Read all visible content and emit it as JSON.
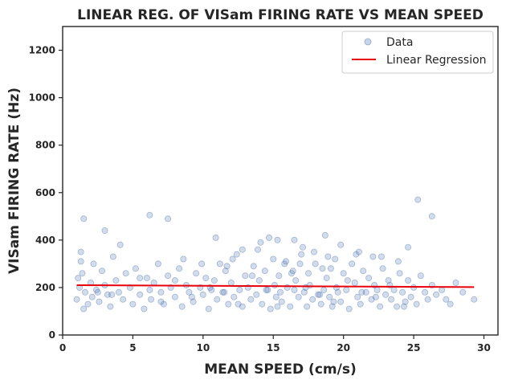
{
  "chart_data": {
    "type": "scatter",
    "title": "LINEAR REG. OF VISam FIRING RATE VS MEAN SPEED",
    "xlabel": "MEAN SPEED (cm/s)",
    "ylabel": "VISam FIRING RATE (Hz)",
    "xlim": [
      0,
      31
    ],
    "ylim": [
      0,
      1300
    ],
    "xticks": [
      0,
      5,
      10,
      15,
      20,
      25,
      30
    ],
    "xtick_labels": [
      "0",
      "5",
      "10",
      "15",
      "20",
      "25",
      "30"
    ],
    "yticks": [
      0,
      200,
      400,
      600,
      800,
      1000,
      1200
    ],
    "ytick_labels": [
      "0",
      "200",
      "400",
      "600",
      "800",
      "1000",
      "1200"
    ],
    "grid": false,
    "legend_position": "top-right",
    "colors": {
      "data": "#4c72b0",
      "regression": "#e8000b",
      "axes": "#262626"
    },
    "series": [
      {
        "name": "Data",
        "kind": "scatter",
        "x": [
          1.0,
          1.1,
          1.2,
          1.3,
          1.4,
          1.5,
          1.6,
          1.8,
          2.0,
          2.1,
          2.2,
          2.4,
          2.6,
          2.8,
          3.0,
          3.2,
          3.4,
          3.6,
          3.8,
          4.0,
          4.3,
          4.5,
          4.8,
          5.0,
          5.2,
          5.5,
          5.8,
          6.0,
          6.2,
          6.3,
          6.5,
          6.8,
          7.0,
          7.2,
          7.5,
          7.7,
          8.0,
          8.3,
          8.5,
          8.8,
          9.0,
          9.3,
          9.5,
          9.8,
          10.0,
          10.2,
          10.4,
          10.6,
          10.8,
          11.0,
          11.2,
          11.4,
          11.6,
          11.8,
          12.0,
          12.2,
          12.4,
          12.6,
          12.8,
          13.0,
          13.2,
          13.4,
          13.6,
          13.8,
          14.0,
          14.2,
          14.4,
          14.6,
          14.8,
          15.0,
          15.1,
          15.2,
          15.4,
          15.5,
          15.6,
          15.8,
          16.0,
          16.2,
          16.4,
          16.5,
          16.6,
          16.8,
          17.0,
          17.2,
          17.4,
          17.5,
          17.6,
          17.8,
          18.0,
          18.2,
          18.4,
          18.5,
          18.6,
          18.8,
          19.0,
          19.2,
          19.4,
          19.5,
          19.6,
          19.8,
          20.0,
          20.2,
          20.4,
          20.6,
          20.8,
          21.0,
          21.2,
          21.4,
          21.6,
          21.8,
          22.0,
          22.2,
          22.4,
          22.6,
          22.8,
          23.0,
          23.2,
          23.4,
          23.6,
          23.8,
          24.0,
          24.2,
          24.4,
          24.6,
          24.8,
          25.0,
          25.2,
          25.5,
          25.8,
          26.0,
          26.3,
          26.6,
          27.0,
          27.3,
          27.6,
          28.0,
          28.5,
          29.3,
          1.3,
          2.5,
          3.5,
          5.5,
          7.0,
          8.0,
          9.2,
          10.5,
          11.5,
          12.5,
          13.5,
          14.5,
          15.3,
          16.3,
          17.3,
          18.3,
          19.3,
          20.3,
          21.3,
          22.3,
          23.3,
          24.3,
          25.3,
          26.3,
          1.5,
          3.0,
          6.2,
          7.5,
          16.5,
          18.7,
          15.3,
          14.7,
          19.8,
          24.6,
          12.8,
          17.9,
          22.7,
          8.6,
          4.1,
          10.9,
          13.9,
          16.9,
          20.9,
          23.9,
          11.7,
          14.1,
          17.1,
          18.9,
          21.1,
          9.9,
          12.1,
          15.9,
          19.1,
          22.1
        ],
        "y": [
          150,
          240,
          200,
          350,
          260,
          110,
          180,
          130,
          220,
          160,
          300,
          190,
          140,
          270,
          210,
          170,
          120,
          330,
          230,
          180,
          150,
          260,
          200,
          130,
          280,
          170,
          110,
          240,
          190,
          150,
          220,
          300,
          180,
          130,
          250,
          200,
          160,
          280,
          120,
          210,
          180,
          140,
          260,
          200,
          170,
          240,
          110,
          190,
          230,
          150,
          300,
          180,
          270,
          130,
          220,
          160,
          340,
          190,
          120,
          250,
          200,
          150,
          290,
          170,
          230,
          130,
          270,
          190,
          110,
          320,
          210,
          160,
          250,
          180,
          140,
          300,
          200,
          120,
          270,
          190,
          230,
          160,
          340,
          180,
          120,
          260,
          210,
          150,
          300,
          170,
          130,
          280,
          190,
          240,
          160,
          120,
          320,
          200,
          180,
          140,
          260,
          190,
          110,
          300,
          220,
          160,
          130,
          270,
          180,
          240,
          150,
          210,
          190,
          120,
          280,
          170,
          230,
          150,
          190,
          120,
          260,
          180,
          140,
          230,
          160,
          200,
          130,
          250,
          180,
          150,
          210,
          170,
          190,
          150,
          130,
          220,
          180,
          150,
          310,
          180,
          170,
          240,
          140,
          230,
          160,
          200,
          180,
          130,
          250,
          190,
          120,
          260,
          200,
          170,
          140,
          230,
          180,
          160,
          210,
          120,
          570,
          500,
          490,
          440,
          505,
          490,
          400,
          420,
          400,
          410,
          380,
          370,
          360,
          350,
          330,
          320,
          380,
          410,
          360,
          300,
          340,
          310,
          290,
          390,
          370,
          330,
          350,
          300,
          320,
          310,
          280,
          330
        ],
        "color": "#4c72b0"
      },
      {
        "name": "Linear Regression",
        "kind": "line",
        "x": [
          1.0,
          29.3
        ],
        "y": [
          210,
          202
        ],
        "color": "#e8000b"
      }
    ]
  }
}
